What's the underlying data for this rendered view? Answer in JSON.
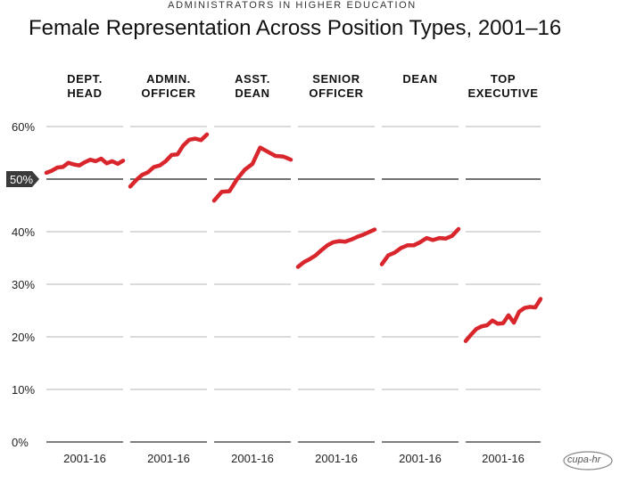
{
  "kicker": "ADMINISTRATORS IN HIGHER EDUCATION",
  "title": "Female Representation Across Position Types, 2001–16",
  "logo_text": "cupa-hr",
  "colors": {
    "line": "#d9262c",
    "grid": "#b5b5b5",
    "baseline": "#555555",
    "badge": "#3a3a3a"
  },
  "chart_data": {
    "type": "line",
    "title": "Female Representation Across Position Types, 2001–16",
    "ylim": [
      0,
      60
    ],
    "y_ticks": [
      "0%",
      "10%",
      "20%",
      "30%",
      "40%",
      "50%",
      "60%"
    ],
    "highlight_tick": "50%",
    "grid": true,
    "x_label": "2001-16",
    "years": [
      2001,
      2016
    ],
    "panels": [
      {
        "title": [
          "DEPT.",
          "HEAD"
        ],
        "values": [
          51.2,
          51.6,
          52.2,
          52.3,
          53.1,
          52.8,
          52.6,
          53.2,
          53.7,
          53.4,
          53.9,
          53.0,
          53.4,
          52.9,
          53.5
        ]
      },
      {
        "title": [
          "ADMIN.",
          "OFFICER"
        ],
        "values": [
          48.6,
          49.8,
          50.8,
          51.3,
          52.3,
          52.6,
          53.4,
          54.6,
          54.7,
          56.4,
          57.5,
          57.7,
          57.4,
          58.5
        ]
      },
      {
        "title": [
          "ASST.",
          "DEAN"
        ],
        "values": [
          45.9,
          47.6,
          47.7,
          50.0,
          51.8,
          52.9,
          56.0,
          55.2,
          54.4,
          54.3,
          53.7
        ]
      },
      {
        "title": [
          "SENIOR",
          "OFFICER"
        ],
        "values": [
          33.3,
          34.2,
          34.8,
          35.5,
          36.5,
          37.4,
          38.0,
          38.2,
          38.1,
          38.5,
          39.0,
          39.4,
          39.9,
          40.4
        ]
      },
      {
        "title": [
          "DEAN",
          ""
        ],
        "values": [
          33.8,
          35.5,
          36.0,
          36.9,
          37.4,
          37.4,
          38.0,
          38.8,
          38.4,
          38.8,
          38.7,
          39.2,
          40.5
        ]
      },
      {
        "title": [
          "TOP",
          "EXECUTIVE"
        ],
        "values": [
          19.2,
          20.4,
          21.5,
          22.0,
          22.2,
          23.1,
          22.5,
          22.6,
          24.1,
          22.7,
          24.8,
          25.5,
          25.7,
          25.6,
          27.2
        ]
      }
    ]
  }
}
